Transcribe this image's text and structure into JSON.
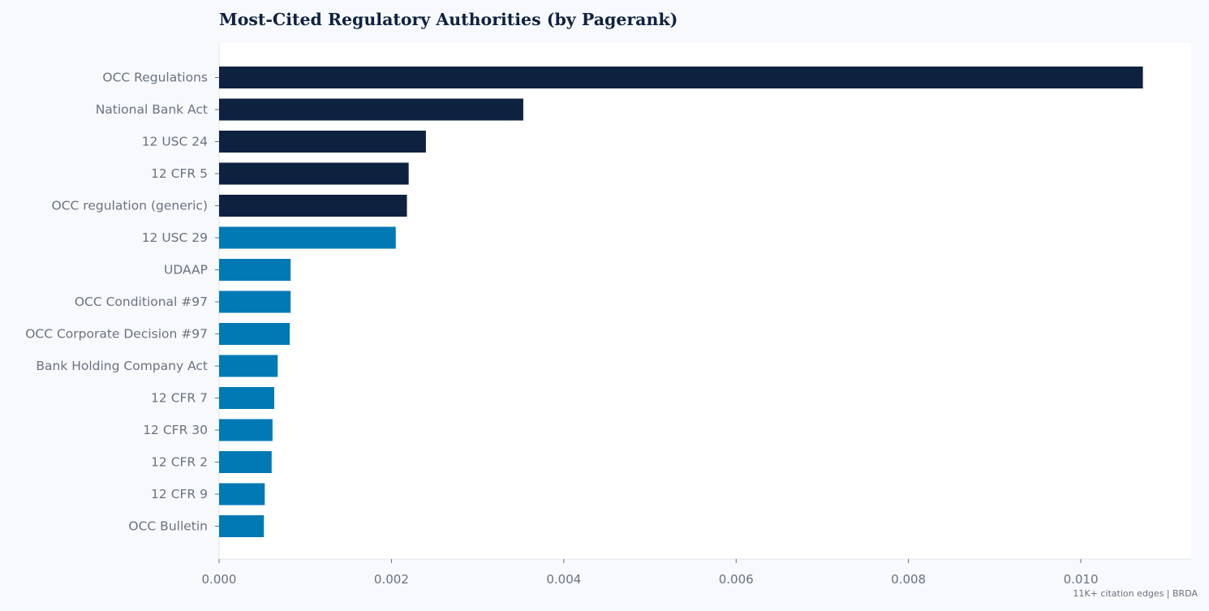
{
  "footnote": "11K+ citation edges | BRDA",
  "colors": {
    "page_background": "#f7f9fc",
    "plot_background": "#ffffff",
    "bar_top": "#0e2240",
    "bar_rest": "#0079b4",
    "axis_text": "#6b7280",
    "spine": "#dfe3ea"
  },
  "chart_data": {
    "type": "bar",
    "orientation": "horizontal",
    "title": "Most-Cited Regulatory Authorities (by Pagerank)",
    "xlabel": "",
    "ylabel": "",
    "categories": [
      "OCC Regulations",
      "National Bank Act",
      "12 USC 24",
      "12 CFR 5",
      "OCC regulation (generic)",
      "12 USC 29",
      "UDAAP",
      "OCC Conditional #97",
      "OCC Corporate Decision #97",
      "Bank Holding Company Act",
      "12 CFR 7",
      "12 CFR 30",
      "12 CFR 2",
      "12 CFR 9",
      "OCC Bulletin"
    ],
    "values": [
      0.01072,
      0.00353,
      0.0024,
      0.0022,
      0.00218,
      0.00205,
      0.00083,
      0.00083,
      0.00082,
      0.00068,
      0.00064,
      0.00062,
      0.00061,
      0.00053,
      0.00052
    ],
    "highlight_top_n": 5,
    "xlim": [
      0,
      0.01128
    ],
    "xticks": [
      0.0,
      0.002,
      0.004,
      0.006,
      0.008,
      0.01
    ],
    "xtick_labels": [
      "0.000",
      "0.002",
      "0.004",
      "0.006",
      "0.008",
      "0.010"
    ],
    "grid": false,
    "legend": "none"
  }
}
